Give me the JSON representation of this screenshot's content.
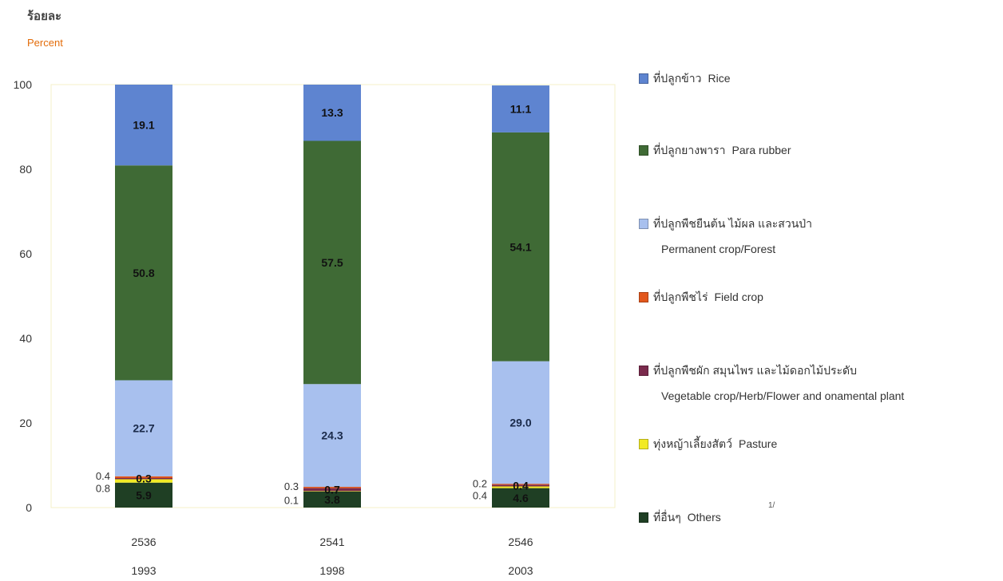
{
  "y_label_thai": "ร้อยละ",
  "y_label_en": "Percent",
  "chart_data": {
    "type": "bar",
    "stacked": true,
    "ylim": [
      0,
      100
    ],
    "yticks": [
      0,
      20,
      40,
      60,
      80,
      100
    ],
    "categories": [
      "2536",
      "2541",
      "2546"
    ],
    "categories_en": [
      "1993",
      "1998",
      "2003"
    ],
    "series": [
      {
        "name": "ที่อื่นๆ Others",
        "color": "#1f3f24",
        "values": [
          5.9,
          3.8,
          4.6
        ]
      },
      {
        "name": "ทุ่งหญ้าเลี้ยงสัตว์ Pasture",
        "color": "#f2ea24",
        "values": [
          0.8,
          0.1,
          0.4
        ]
      },
      {
        "name": "ที่ปลูกพืชผัก สมุนไพร และไม้ดอกไม้ประดับ Vegetable crop/Herb/Flower and onamental plant",
        "color": "#7a2a4c",
        "values": [
          0.3,
          0.7,
          0.4
        ]
      },
      {
        "name": "ที่ปลูกพืชไร่ Field crop",
        "color": "#e2571c",
        "values": [
          0.4,
          0.3,
          0.2
        ]
      },
      {
        "name": "ที่ปลูกพืชยืนต้น ไม้ผล และสวนป่า Permanent crop/Forest",
        "color": "#a8c0ee",
        "values": [
          22.7,
          24.3,
          29.0
        ]
      },
      {
        "name": "ที่ปลูกยางพารา Para rubber",
        "color": "#3f6a35",
        "values": [
          50.8,
          57.5,
          54.1
        ]
      },
      {
        "name": "ที่ปลูกข้าว Rice",
        "color": "#5e84d0",
        "values": [
          19.1,
          13.3,
          11.1
        ]
      }
    ],
    "inside_labels": [
      [
        "5.9",
        "",
        "0.3",
        "",
        "22.7",
        "50.8",
        "19.1"
      ],
      [
        "3.8",
        "",
        "0.7",
        "",
        "24.3",
        "57.5",
        "13.3"
      ],
      [
        "4.6",
        "",
        "0.4",
        "",
        "29.0",
        "54.1",
        "11.1"
      ]
    ],
    "outside_labels": [
      [
        "0.8",
        "0.4"
      ],
      [
        "0.1",
        "0.3"
      ],
      [
        "0.4",
        "0.2"
      ]
    ]
  },
  "legend": [
    {
      "thai": "ที่ปลูกข้าว",
      "en": "Rice",
      "en2": "",
      "color": "#5e84d0"
    },
    {
      "thai": "ที่ปลูกยางพารา",
      "en": "Para rubber",
      "en2": "",
      "color": "#3f6a35"
    },
    {
      "thai": "ที่ปลูกพืชยืนต้น ไม้ผล และสวนป่า",
      "en": "",
      "en2": "Permanent crop/Forest",
      "color": "#a8c0ee"
    },
    {
      "thai": "ที่ปลูกพืชไร่",
      "en": "Field crop",
      "en2": "",
      "color": "#e2571c"
    },
    {
      "thai": "ที่ปลูกพืชผัก สมุนไพร และไม้ดอกไม้ประดับ",
      "en": "",
      "en2": "Vegetable crop/Herb/Flower and onamental plant",
      "color": "#7a2a4c"
    },
    {
      "thai": "ทุ่งหญ้าเลี้ยงสัตว์",
      "en": "Pasture",
      "en2": "",
      "color": "#f2ea24"
    },
    {
      "thai": "ที่อื่นๆ",
      "en": "Others",
      "en2": "",
      "color": "#1f3f24"
    }
  ],
  "footnote_mark": "1/"
}
